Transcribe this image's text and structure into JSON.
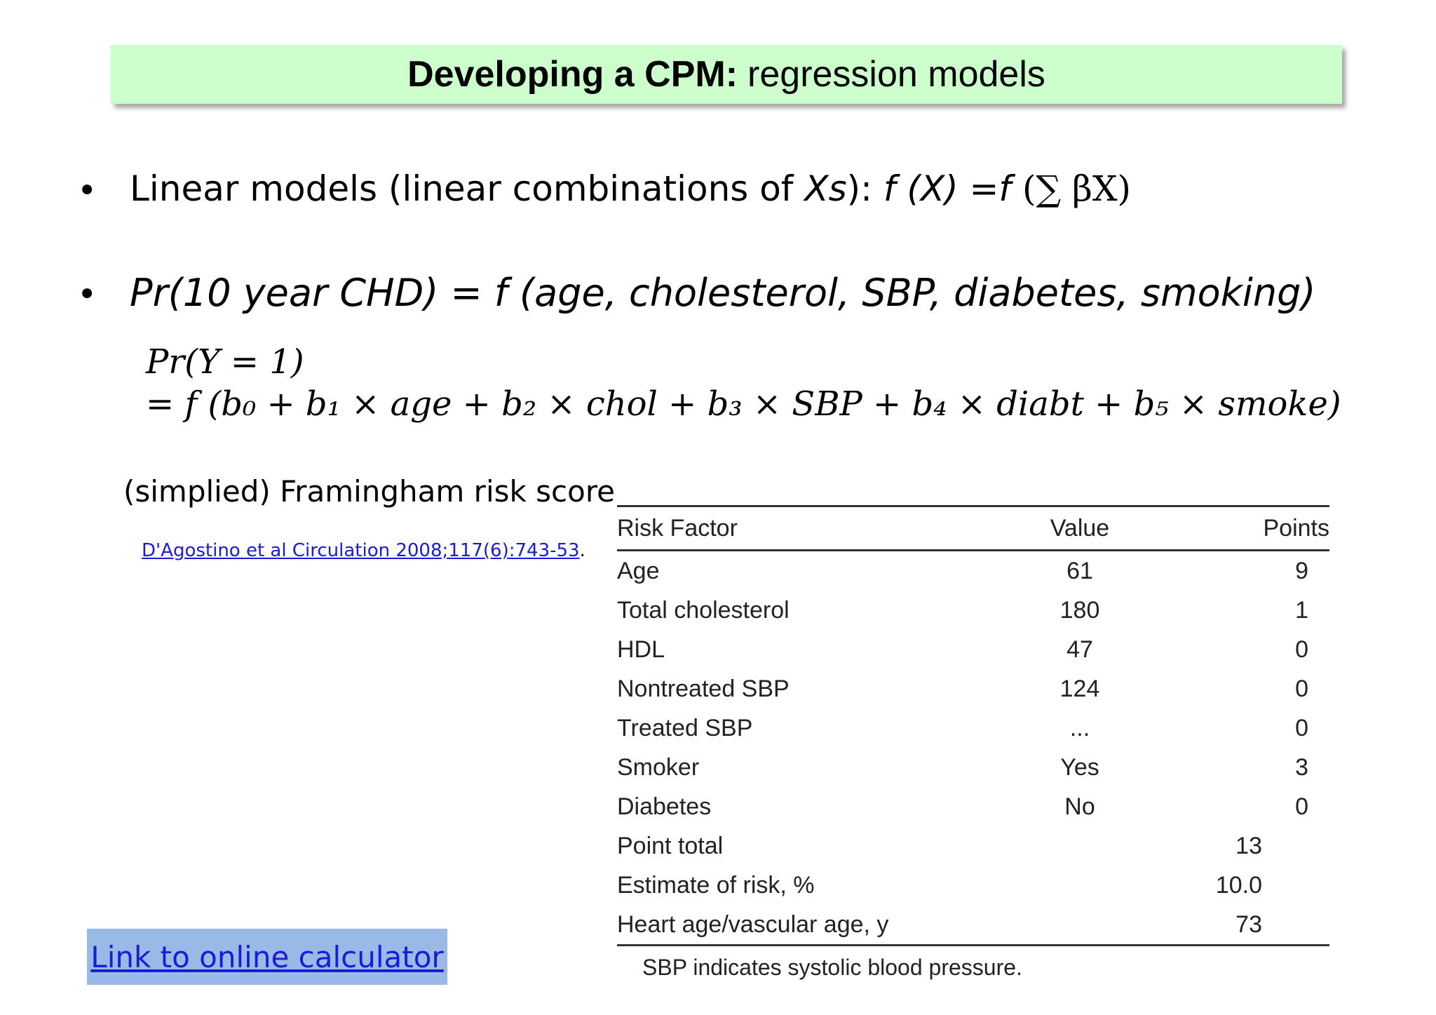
{
  "title": {
    "bold": "Developing a CPM:",
    "rest": "regression models"
  },
  "bullets": {
    "symbol": "•",
    "linear_prefix": "Linear models (linear combinations of ",
    "linear_xs": "Xs",
    "linear_close": "):",
    "linear_formula_f": " f (X) =f ",
    "linear_formula_sum": "(∑ βX)",
    "chd": "Pr(10 year CHD) = f (age, cholesterol, SBP, diabetes, smoking)"
  },
  "equation": {
    "line1": "Pr(Y = 1)",
    "line2": "= f (b₀ + b₁ × age + b₂ × chol + b₃ × SBP + b₄ × diabt + b₅ × smoke)"
  },
  "caption": "(simplied) Framingham risk score",
  "reference": {
    "text": "D'Agostino et al Circulation 2008;117(6):743-53",
    "trail": "."
  },
  "table": {
    "headers": {
      "factor": "Risk Factor",
      "value": "Value",
      "points": "Points"
    },
    "rows": [
      {
        "factor": "Age",
        "value": "61",
        "points": "9"
      },
      {
        "factor": "Total cholesterol",
        "value": "180",
        "points": "1"
      },
      {
        "factor": "HDL",
        "value": "47",
        "points": "0"
      },
      {
        "factor": "Nontreated SBP",
        "value": "124",
        "points": "0"
      },
      {
        "factor": "Treated SBP",
        "value": "...",
        "points": "0"
      },
      {
        "factor": "Smoker",
        "value": "Yes",
        "points": "3"
      },
      {
        "factor": "Diabetes",
        "value": "No",
        "points": "0"
      }
    ],
    "totals": [
      {
        "label": "Point total",
        "value": "13"
      },
      {
        "label": "Estimate of risk, %",
        "value": "10.0"
      },
      {
        "label": "Heart age/vascular age, y",
        "value": "73"
      }
    ],
    "footnote": "SBP indicates systolic blood pressure."
  },
  "calculator_link": "Link to online calculator"
}
